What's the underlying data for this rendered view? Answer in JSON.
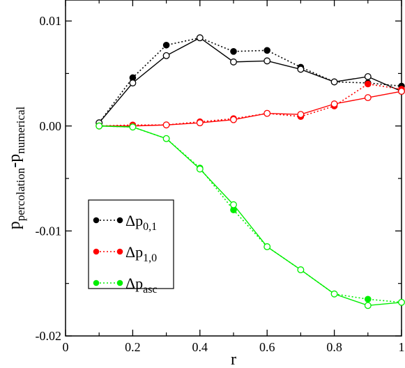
{
  "chart_data": {
    "type": "line",
    "xlabel": "r",
    "ylabel": {
      "main": "p",
      "sub1": "percolation",
      "middle": "-p",
      "sub2": "numerical"
    },
    "xlim": [
      0,
      1
    ],
    "ylim": [
      -0.02,
      0.012
    ],
    "x_ticks": [
      0,
      0.2,
      0.4,
      0.6,
      0.8,
      1
    ],
    "x_tick_labels": [
      "0",
      "0.2",
      "0.4",
      "0.6",
      "0.8",
      "1"
    ],
    "y_ticks": [
      -0.02,
      -0.01,
      0.0,
      0.01
    ],
    "y_tick_labels": [
      "-0.02",
      "-0.01",
      "0.00",
      "0.01"
    ],
    "grid": false,
    "legend_position": "lower-left",
    "x": [
      0.1,
      0.2,
      0.3,
      0.4,
      0.5,
      0.6,
      0.7,
      0.8,
      0.9,
      1.0
    ],
    "series": [
      {
        "label_main": "Δp",
        "label_sub": "0,1",
        "color": "#000000",
        "dotted_filled": [
          0.0003,
          0.0046,
          0.0077,
          0.0084,
          0.0071,
          0.0072,
          0.0056,
          0.0042,
          0.0041,
          0.0038
        ],
        "solid_open": [
          0.0003,
          0.0041,
          0.0067,
          0.0084,
          0.0061,
          0.0062,
          0.0054,
          0.0042,
          0.0047,
          0.0033
        ]
      },
      {
        "label_main": "Δp",
        "label_sub": "1,0",
        "color": "#ff0000",
        "dotted_filled": [
          0.0,
          0.0001,
          0.0001,
          0.0004,
          0.0007,
          0.0012,
          0.0009,
          0.0019,
          0.004,
          0.0035
        ],
        "solid_open": [
          0.0,
          0.0,
          0.0001,
          0.0003,
          0.0006,
          0.0012,
          0.0011,
          0.0021,
          0.0027,
          0.0033
        ]
      },
      {
        "label_main": "Δp",
        "label_sub": "asc",
        "color": "#00ee00",
        "dotted_filled": [
          0.0,
          -0.0001,
          -0.0012,
          -0.004,
          -0.008,
          -0.0115,
          -0.0137,
          -0.016,
          -0.0165,
          -0.0168
        ],
        "solid_open": [
          0.0,
          -0.0001,
          -0.0012,
          -0.0041,
          -0.0075,
          -0.0115,
          -0.0137,
          -0.016,
          -0.0171,
          -0.0168
        ]
      }
    ]
  }
}
